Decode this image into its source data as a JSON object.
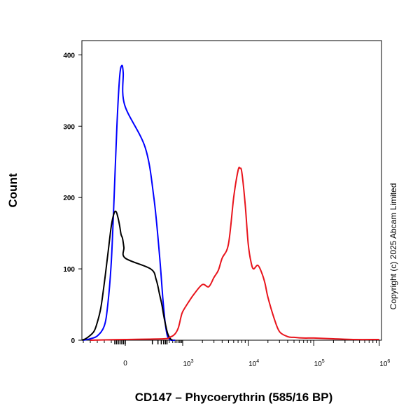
{
  "chart_data": {
    "type": "line",
    "xlabel": "CD147 – Phycoerythrin (585/16 BP)",
    "ylabel": "Count",
    "ylim": [
      0,
      420
    ],
    "y_ticks": [
      0,
      100,
      200,
      300,
      400
    ],
    "x_scale": "biexponential",
    "xlim": [
      -700,
      1000000
    ],
    "x_ticks": [
      {
        "value": 0,
        "label": "0"
      },
      {
        "value": 1000,
        "base": "10",
        "exp": "3"
      },
      {
        "value": 10000,
        "base": "10",
        "exp": "4"
      },
      {
        "value": 100000,
        "base": "10",
        "exp": "5"
      },
      {
        "value": 1000000,
        "base": "10",
        "exp": "6"
      }
    ],
    "annotation": "Copyright (c) 2025 Abcam Limited",
    "series": [
      {
        "color": "#0000ff",
        "x": [
          -600,
          -500,
          -400,
          -300,
          -250,
          -200,
          -160,
          -120,
          -80,
          -50,
          -30,
          -10,
          10,
          30,
          60,
          90,
          120,
          150,
          180,
          210,
          250,
          300,
          350,
          400
        ],
        "y": [
          0,
          2,
          6,
          20,
          50,
          110,
          200,
          300,
          370,
          385,
          375,
          330,
          270,
          200,
          120,
          60,
          25,
          8,
          3,
          1,
          0,
          0,
          0,
          0
        ]
      },
      {
        "color": "#000000",
        "x": [
          -650,
          -550,
          -450,
          -400,
          -350,
          -300,
          -250,
          -200,
          -160,
          -130,
          -100,
          -80,
          -60,
          -40,
          -20,
          0,
          20,
          40,
          60,
          80,
          100,
          130,
          160,
          200,
          250,
          300
        ],
        "y": [
          0,
          3,
          12,
          25,
          45,
          80,
          120,
          160,
          178,
          180,
          170,
          160,
          148,
          143,
          130,
          115,
          100,
          85,
          65,
          50,
          35,
          20,
          10,
          4,
          1,
          0
        ],
        "color_note": ""
      },
      {
        "color": "#e8141c",
        "x": [
          -500,
          0,
          100,
          200,
          300,
          400,
          500,
          600,
          700,
          800,
          1000,
          1200,
          1500,
          2000,
          2500,
          3000,
          3500,
          4000,
          5000,
          6000,
          7000,
          7500,
          8000,
          9000,
          10000,
          11000,
          12000,
          14000,
          16000,
          18000,
          20000,
          25000,
          30000,
          40000,
          50000,
          70000,
          100000,
          200000,
          400000,
          1000000
        ],
        "y": [
          0,
          1,
          2,
          4,
          6,
          9,
          13,
          18,
          25,
          32,
          40,
          52,
          65,
          78,
          75,
          88,
          98,
          115,
          135,
          200,
          238,
          241,
          235,
          190,
          135,
          110,
          100,
          105,
          95,
          80,
          60,
          30,
          12,
          5,
          4,
          3,
          3,
          2,
          1,
          1
        ]
      }
    ]
  }
}
